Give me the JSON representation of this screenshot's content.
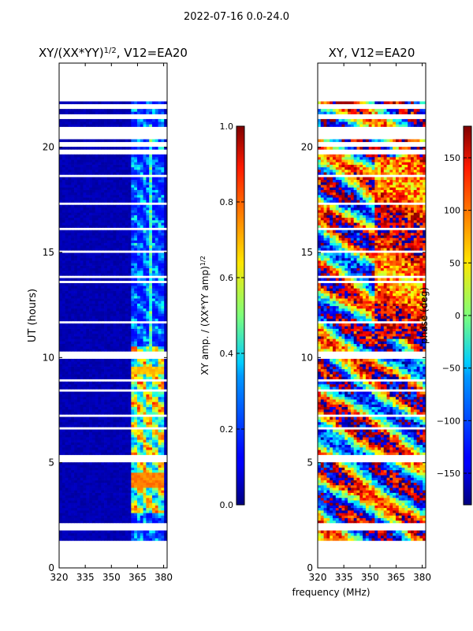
{
  "suptitle": "2022-07-16 0.0-24.0",
  "xlabel_shared": "frequency (MHz)",
  "chart_data": [
    {
      "type": "heatmap",
      "title": "XY/(XX*YY)^1/2, V12=EA20",
      "title_parts": {
        "main": "XY/(XX*YY)",
        "exp": "1/2",
        "tail": ", V12=EA20"
      },
      "xlabel": "",
      "ylabel": "UT (hours)",
      "xlim": [
        320,
        382
      ],
      "ylim": [
        0,
        24
      ],
      "xticks": [
        320,
        335,
        350,
        365,
        380
      ],
      "yticks": [
        0,
        5,
        10,
        15,
        20
      ],
      "data_range_hours": [
        1.3,
        22.3
      ],
      "colormap": "jet",
      "colorbar": {
        "label": "XY amp. / (XX*YY amp)^1/2",
        "label_parts": {
          "main": "XY amp. / (XX*YY amp)",
          "exp": "1/2"
        },
        "range": [
          0.0,
          1.0
        ],
        "ticks": [
          0.0,
          0.2,
          0.4,
          0.6,
          0.8,
          1.0
        ],
        "tick_labels": [
          "0.0",
          "0.2",
          "0.4",
          "0.6",
          "0.8",
          "1.0"
        ]
      },
      "description_values": {
        "background_amp": 0.05,
        "rfi_band_mhz": [
          361,
          380
        ],
        "rfi_peak_amp": 0.75
      }
    },
    {
      "type": "heatmap",
      "title": "XY, V12=EA20",
      "xlabel": "frequency (MHz)",
      "ylabel": "",
      "xlim": [
        320,
        382
      ],
      "ylim": [
        0,
        24
      ],
      "xticks": [
        320,
        335,
        350,
        365,
        380
      ],
      "yticks": [
        0,
        5,
        10,
        15,
        20
      ],
      "data_range_hours": [
        1.3,
        22.3
      ],
      "colormap": "jet",
      "colorbar": {
        "label": "phase (deg)",
        "range": [
          -180,
          180
        ],
        "ticks": [
          -150,
          -100,
          -50,
          0,
          50,
          100,
          150
        ],
        "tick_labels": [
          "−150",
          "−100",
          "−50",
          "0",
          "50",
          "100",
          "150"
        ]
      }
    }
  ],
  "colors": {
    "axis": "#000000",
    "background": "#ffffff",
    "missing": "#ffffff"
  }
}
